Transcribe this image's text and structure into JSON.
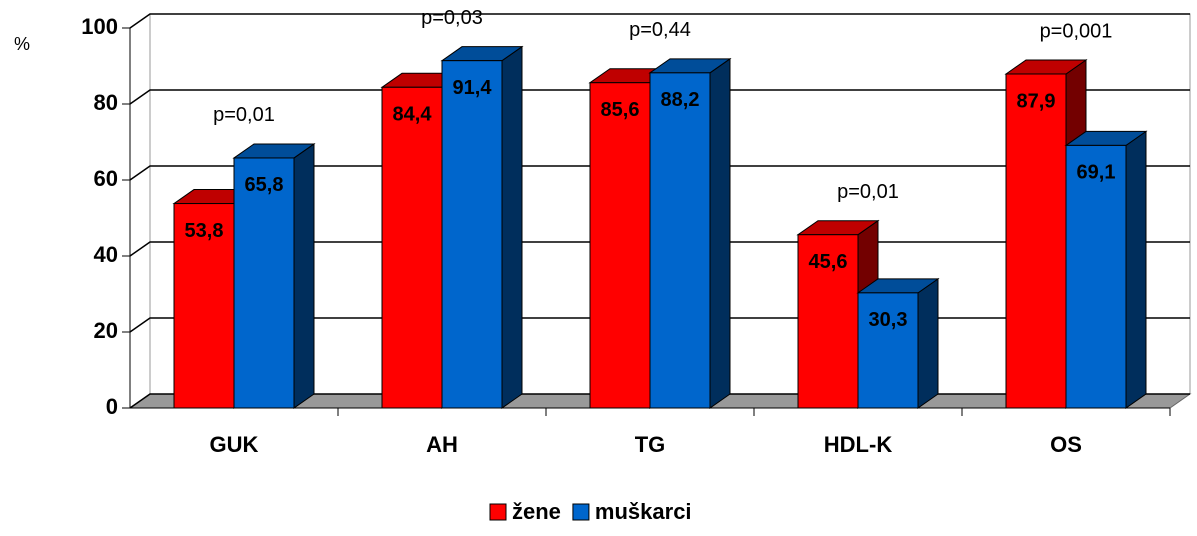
{
  "chart_data": {
    "type": "bar3d",
    "y_label": "%",
    "categories": [
      "GUK",
      "AH",
      "TG",
      "HDL-K",
      "OS"
    ],
    "series": [
      {
        "name": "žene",
        "color": "#ff0000",
        "values": [
          53.8,
          84.4,
          85.6,
          45.6,
          87.9
        ],
        "value_labels": [
          "53,8",
          "84,4",
          "85,6",
          "45,6",
          "87,9"
        ]
      },
      {
        "name": "muškarci",
        "color": "#0066cc",
        "values": [
          65.8,
          91.4,
          88.2,
          30.3,
          69.1
        ],
        "value_labels": [
          "65,8",
          "91,4",
          "88,2",
          "30,3",
          "69,1"
        ]
      }
    ],
    "annotations": [
      "p=0,01",
      "p=0,03",
      "p=0,44",
      "p=0,01",
      "p=0,001"
    ],
    "ylim": [
      0,
      100
    ],
    "yticks": [
      0,
      20,
      40,
      60,
      80,
      100
    ],
    "grid": true,
    "legend": "bottom"
  }
}
